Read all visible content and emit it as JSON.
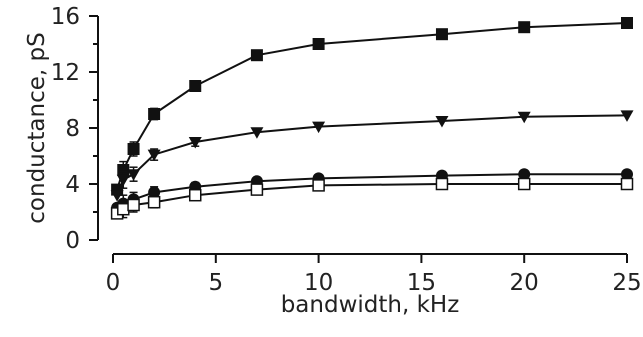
{
  "chart_data": {
    "type": "line",
    "xlabel": "bandwidth, kHz",
    "ylabel": "conductance, pS",
    "xlim": [
      0,
      25
    ],
    "ylim": [
      0,
      16
    ],
    "xticks": [
      0,
      5,
      10,
      15,
      20,
      25
    ],
    "yticks": [
      0,
      4,
      8,
      12,
      16
    ],
    "grid": false,
    "legend": "none",
    "series": [
      {
        "marker": "filled-square",
        "x": [
          0.2,
          0.5,
          1,
          2,
          4,
          7,
          10,
          16,
          20,
          25
        ],
        "y": [
          3.6,
          5.0,
          6.5,
          9.0,
          11.0,
          13.2,
          14.0,
          14.7,
          15.2,
          15.5
        ]
      },
      {
        "marker": "filled-triangle-down",
        "x": [
          0.2,
          0.5,
          1,
          2,
          4,
          7,
          10,
          16,
          20,
          25
        ],
        "y": [
          3.2,
          4.3,
          4.7,
          6.1,
          7.0,
          7.7,
          8.1,
          8.5,
          8.8,
          8.9
        ]
      },
      {
        "marker": "filled-circle",
        "x": [
          0.2,
          0.5,
          1,
          2,
          4,
          7,
          10,
          16,
          20,
          25
        ],
        "y": [
          2.3,
          2.6,
          2.9,
          3.4,
          3.8,
          4.2,
          4.4,
          4.6,
          4.7,
          4.7
        ]
      },
      {
        "marker": "open-square",
        "x": [
          0.2,
          0.5,
          1,
          2,
          4,
          7,
          10,
          16,
          20,
          25
        ],
        "y": [
          1.9,
          2.2,
          2.5,
          2.7,
          3.2,
          3.6,
          3.9,
          4.0,
          4.0,
          4.0
        ]
      }
    ],
    "error_bars": {
      "x": [
        0.5,
        1,
        2,
        4
      ],
      "half_height": [
        0.6,
        0.5,
        0.4,
        0.3
      ]
    }
  }
}
